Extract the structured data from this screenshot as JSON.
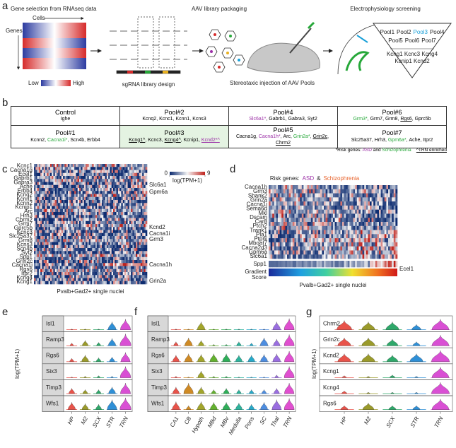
{
  "panel_a": {
    "label": "a",
    "step1": "Gene selection from RNAseq data",
    "cells": "Cells",
    "genes": "Genes",
    "low": "Low",
    "high": "High",
    "step2": "sgRNA library design",
    "step3": "AAV library packaging",
    "step4": "Stereotaxic injection of AAV Pools",
    "step5": "Electrophysiology screening",
    "pools": [
      "Pool1",
      "Pool2",
      "Pool3",
      "Pool4",
      "Pool5",
      "Pool6",
      "Pool7"
    ],
    "highlight_pool": 2,
    "pool3_genes": [
      "Kcng1 Kcnc3 Kcng4",
      "Kcnip1 Kcnd2"
    ]
  },
  "panel_b": {
    "label": "b",
    "rows": [
      [
        {
          "name": "Control",
          "genes": [
            {
              "text": "Ighe"
            }
          ]
        },
        {
          "name": "Pool#2",
          "genes": [
            {
              "text": "Kcnq2"
            },
            {
              "text": "Kcnc1"
            },
            {
              "text": "Kcnn1"
            },
            {
              "text": "Kcns3"
            }
          ]
        },
        {
          "name": "Pool#4",
          "genes": [
            {
              "text": "Slc6a1*",
              "color": "#9b2fa6"
            },
            {
              "text": "Gabrb1"
            },
            {
              "text": "Gabra3"
            },
            {
              "text": "Syt2"
            }
          ]
        },
        {
          "name": "Pool#6",
          "genes": [
            {
              "text": "Grm3*",
              "color": "#27a83a"
            },
            {
              "text": "Grm7"
            },
            {
              "text": "Grm8"
            },
            {
              "text": "Rgs6",
              "underline": true
            },
            {
              "text": "Gprc5b"
            }
          ]
        }
      ],
      [
        {
          "name": "Pool#1",
          "genes": [
            {
              "text": "Kcnn2"
            },
            {
              "text": "Cacna1i*",
              "color": "#27a83a"
            },
            {
              "text": "Scn4b"
            },
            {
              "text": "Erbb4"
            }
          ]
        },
        {
          "name": "Pool#3",
          "highlight": true,
          "genes": [
            {
              "text": "Kcng1^",
              "underline": true
            },
            {
              "text": "Kcnc3"
            },
            {
              "text": "Kcng4^",
              "underline": true
            },
            {
              "text": "Kcnip1"
            },
            {
              "text": "Kcnd2*^",
              "underline": true,
              "color": "#9b2fa6"
            }
          ]
        },
        {
          "name": "Pool#5",
          "genes": [
            {
              "text": "Cacna1g"
            },
            {
              "text": "Cacna1h*",
              "color": "#9b2fa6"
            },
            {
              "text": "Arc"
            },
            {
              "text": "Grin2a*",
              "color": "#27a83a"
            },
            {
              "text": "Grin2c",
              "underline": true
            },
            {
              "text": "Chrm2",
              "underline": true
            }
          ]
        },
        {
          "name": "Pool#7",
          "genes": [
            {
              "text": "Slc25a37"
            },
            {
              "text": "Hrh3"
            },
            {
              "text": "Gpm6a*",
              "color": "#27a83a"
            },
            {
              "text": "Ache"
            },
            {
              "text": "Itpr2"
            }
          ]
        }
      ]
    ],
    "footnote": {
      "prefix": "*Risk genes: ",
      "asd": "ASD",
      "and": " and ",
      "scz": "Schizophrenia",
      "trn": "^TRN enriched"
    }
  },
  "panel_c": {
    "label": "c",
    "left_genes": [
      {
        "text": "Kcnc1",
        "color": "#1aa0d8"
      },
      {
        "text": "Cacna1g",
        "color": "#d6198c"
      },
      {
        "text": "Ecel1",
        "color": "#222"
      },
      {
        "text": "Gabrb1",
        "color": "#d6198c"
      },
      {
        "text": "Gabra3",
        "color": "#d6198c"
      },
      {
        "text": "Ache",
        "color": "#222"
      },
      {
        "text": "Erbb4",
        "color": "#222"
      },
      {
        "text": "Kcnq2",
        "color": "#1aa0d8"
      },
      {
        "text": "Kcnn1",
        "color": "#1aa0d8"
      },
      {
        "text": "Kcnn2",
        "color": "#1aa0d8"
      },
      {
        "text": "Kcnip1",
        "color": "#222"
      },
      {
        "text": "Arc",
        "color": "#d6198c"
      },
      {
        "text": "Hrh3",
        "color": "#d6198c"
      },
      {
        "text": "Chrm2",
        "color": "#d6198c"
      },
      {
        "text": "Grm7",
        "color": "#222"
      },
      {
        "text": "Gprc5b",
        "color": "#222"
      },
      {
        "text": "Kcnc3",
        "color": "#1aa0d8"
      },
      {
        "text": "Slc25a37",
        "color": "#222"
      },
      {
        "text": "Grm8",
        "color": "#222"
      },
      {
        "text": "Kcns3",
        "color": "#1aa0d8"
      },
      {
        "text": "Scn4b",
        "color": "#222"
      },
      {
        "text": "Syt2",
        "color": "#222"
      },
      {
        "text": "Spp1",
        "color": "#222"
      },
      {
        "text": "Grin2c",
        "color": "#d6198c"
      },
      {
        "text": "Cacna1i",
        "color": "#d6198c"
      },
      {
        "text": "Rgs6",
        "color": "#222"
      },
      {
        "text": "Itpr2",
        "color": "#222"
      },
      {
        "text": "Kcng4",
        "color": "#1aa0d8"
      },
      {
        "text": "Kcng1",
        "color": "#1aa0d8"
      }
    ],
    "right_genes": [
      {
        "text": "Slc6a1",
        "color": "#d6198c"
      },
      {
        "text": "Gpm6a",
        "color": "#222"
      },
      {
        "text": "Kcnd2",
        "color": "#27a83a"
      },
      {
        "text": "Cacna1i",
        "color": "#222"
      },
      {
        "text": "Grm3",
        "color": "#222"
      },
      {
        "text": "Cacna1h",
        "color": "#d6198c"
      },
      {
        "text": "Grin2a",
        "color": "#d6198c"
      }
    ],
    "colorbar": {
      "min": 0,
      "max": 9,
      "title": "log(TPM+1)"
    },
    "xlabel": "Pvalb+Gad2+  single nuclei"
  },
  "panel_d": {
    "label": "d",
    "legend": {
      "prefix": "Risk genes:",
      "asd": "ASD",
      "amp": "&",
      "scz": "Schizophrenia"
    },
    "genes": [
      {
        "text": "Cacna1h",
        "color": "#9b2fa6"
      },
      {
        "text": "Grm3",
        "color": "#e8632c"
      },
      {
        "text": "Shank2",
        "color": "#9b2fa6"
      },
      {
        "text": "Grin2a",
        "color": "#e8632c"
      },
      {
        "text": "Cacna1i",
        "color": "#e8632c"
      },
      {
        "text": "Sema6d",
        "color": "#e8632c"
      },
      {
        "text": "Mkl",
        "color": "#9b2fa6"
      },
      {
        "text": "Dscam",
        "color": "#9b2fa6"
      },
      {
        "text": "Car8",
        "color": "#e8632c"
      },
      {
        "text": "Ptch2",
        "color": "#e8632c"
      },
      {
        "text": "Trank1",
        "color": "#e8632c"
      },
      {
        "text": "Pla1",
        "color": "#e8632c"
      },
      {
        "text": "Ptprk",
        "color": "#9b2fa6"
      },
      {
        "text": "Mboat7",
        "color": "#9b2fa6"
      },
      {
        "text": "Cacna2d3",
        "color": "#9b2fa6"
      },
      {
        "text": "Gpm6a",
        "color": "#e8632c"
      },
      {
        "text": "Slc6a1",
        "color": "#9b2fa6"
      }
    ],
    "spp1": "Spp1",
    "ecel1": "Ecel1",
    "score": [
      "Gradient",
      "Score"
    ],
    "xlabel": "Pvalb+Gad2+  single nuclei"
  },
  "panel_e": {
    "label": "e",
    "ylabel": "log(TPM+1)",
    "regions": [
      {
        "name": "HP",
        "color": "#e8534a"
      },
      {
        "name": "M2",
        "color": "#9a9a2a"
      },
      {
        "name": "SCX",
        "color": "#2fa86a"
      },
      {
        "name": "STR",
        "color": "#2f8fd6"
      },
      {
        "name": "TRN",
        "color": "#d94fd4"
      }
    ],
    "rows": [
      {
        "gene": "Isl1",
        "values": [
          0.05,
          0.05,
          0.05,
          0.6,
          0.8
        ]
      },
      {
        "gene": "Ramp3",
        "values": [
          0.2,
          0.4,
          0.25,
          0.55,
          0.9
        ]
      },
      {
        "gene": "Rgs6",
        "values": [
          0.25,
          0.5,
          0.3,
          0.35,
          0.7
        ]
      },
      {
        "gene": "Six3",
        "values": [
          0.05,
          0.1,
          0.15,
          0.1,
          0.85
        ]
      },
      {
        "gene": "Timp3",
        "values": [
          0.4,
          0.3,
          0.3,
          0.5,
          0.8
        ]
      },
      {
        "gene": "Wfs1",
        "values": [
          0.55,
          0.45,
          0.4,
          0.75,
          0.9
        ]
      }
    ]
  },
  "panel_f": {
    "label": "f",
    "regions": [
      {
        "name": "CA1",
        "color": "#e8534a"
      },
      {
        "name": "CB",
        "color": "#cf8a25"
      },
      {
        "name": "Hypoth",
        "color": "#a2a52a"
      },
      {
        "name": "MBd",
        "color": "#63b12f"
      },
      {
        "name": "MBv",
        "color": "#2fae59"
      },
      {
        "name": "Medulla",
        "color": "#2db39c"
      },
      {
        "name": "Pons",
        "color": "#27a9c9"
      },
      {
        "name": "SC",
        "color": "#4d8de0"
      },
      {
        "name": "Thal",
        "color": "#9a6ee0"
      },
      {
        "name": "TRN",
        "color": "#e04fd0"
      }
    ],
    "rows": [
      {
        "gene": "Isl1",
        "values": [
          0.05,
          0.05,
          0.6,
          0.05,
          0.05,
          0.05,
          0.05,
          0.05,
          0.6,
          0.85
        ]
      },
      {
        "gene": "Ramp3",
        "values": [
          0.3,
          0.6,
          0.4,
          0.1,
          0.1,
          0.3,
          0.2,
          0.6,
          0.5,
          0.85
        ]
      },
      {
        "gene": "Rgs6",
        "values": [
          0.5,
          0.6,
          0.55,
          0.6,
          0.6,
          0.5,
          0.5,
          0.55,
          0.6,
          0.8
        ]
      },
      {
        "gene": "Six3",
        "values": [
          0.1,
          0.05,
          0.5,
          0.1,
          0.1,
          0.05,
          0.05,
          0.05,
          0.2,
          0.85
        ]
      },
      {
        "gene": "Timp3",
        "values": [
          0.5,
          0.8,
          0.5,
          0.3,
          0.4,
          0.3,
          0.3,
          0.3,
          0.4,
          0.8
        ]
      },
      {
        "gene": "Wfs1",
        "values": [
          0.6,
          0.3,
          0.6,
          0.55,
          0.55,
          0.5,
          0.4,
          0.55,
          0.75,
          0.85
        ]
      }
    ]
  },
  "panel_g": {
    "label": "g",
    "ylabel": "log(TPM+1)",
    "regions": [
      {
        "name": "HP",
        "color": "#e8534a"
      },
      {
        "name": "M2",
        "color": "#9a9a2a"
      },
      {
        "name": "SCX",
        "color": "#2fa86a"
      },
      {
        "name": "STR",
        "color": "#2f8fd6"
      },
      {
        "name": "TRN",
        "color": "#d94fd4"
      }
    ],
    "rows": [
      {
        "gene": "Chrm2",
        "color": "#d6198c",
        "values": [
          0.7,
          0.6,
          0.6,
          0.4,
          0.8
        ]
      },
      {
        "gene": "Grin2c",
        "color": "#d6198c",
        "values": [
          0.6,
          0.6,
          0.5,
          0.3,
          0.8
        ]
      },
      {
        "gene": "Kcnd2",
        "color": "#27a83a",
        "values": [
          0.6,
          0.6,
          0.5,
          0.6,
          0.85
        ]
      },
      {
        "gene": "Kcng1",
        "color": "#27a83a",
        "values": [
          0.15,
          0.1,
          0.2,
          0.1,
          0.8
        ]
      },
      {
        "gene": "Kcng4",
        "color": "#27a83a",
        "values": [
          0.2,
          0.1,
          0.1,
          0.1,
          0.85
        ]
      },
      {
        "gene": "Rgs6",
        "color": "#9b2fa6",
        "values": [
          0.3,
          0.5,
          0.3,
          0.3,
          0.8
        ]
      }
    ]
  }
}
